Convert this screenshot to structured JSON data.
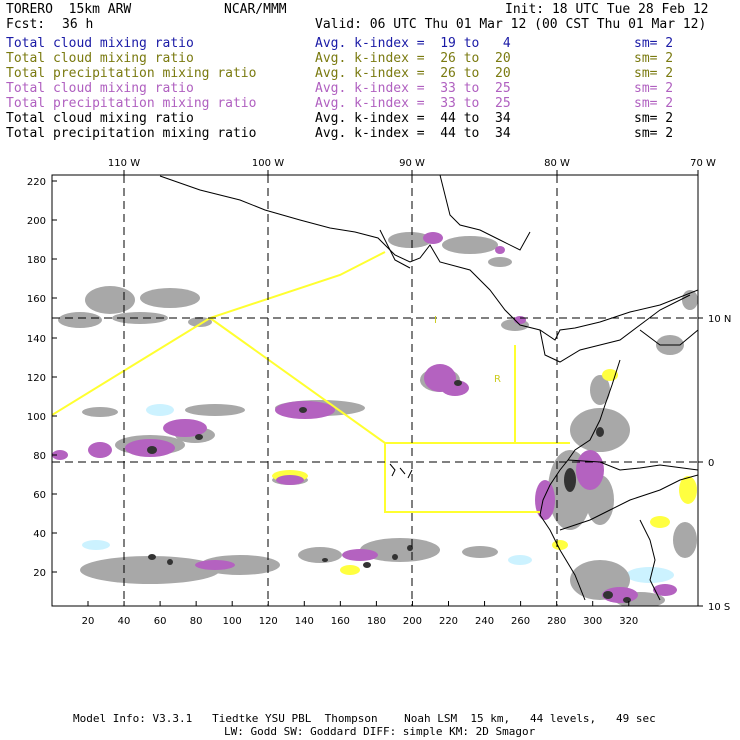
{
  "header": {
    "model": "TORERO  15km ARW",
    "org": "NCAR/MMM",
    "init": "Init: 18 UTC Tue 28 Feb 12",
    "fcst_label": "Fcst:",
    "fcst_value": "36 h",
    "valid": "Valid: 06 UTC Thu 01 Mar 12 (00 CST Thu 01 Mar 12)"
  },
  "legend": [
    {
      "field": "Total cloud mixing ratio",
      "index": "Avg. k-index =  19 to   4",
      "sm": "sm= 2",
      "color": "#1a1aa6"
    },
    {
      "field": "Total cloud mixing ratio",
      "index": "Avg. k-index =  26 to  20",
      "sm": "sm= 2",
      "color": "#7a7a10"
    },
    {
      "field": "Total precipitation mixing ratio",
      "index": "Avg. k-index =  26 to  20",
      "sm": "sm= 2",
      "color": "#7a7a10"
    },
    {
      "field": "Total cloud mixing ratio",
      "index": "Avg. k-index =  33 to  25",
      "sm": "sm= 2",
      "color": "#b060c0"
    },
    {
      "field": "Total precipitation mixing ratio",
      "index": "Avg. k-index =  33 to  25",
      "sm": "sm= 2",
      "color": "#b060c0"
    },
    {
      "field": "Total cloud mixing ratio",
      "index": "Avg. k-index =  44 to  34",
      "sm": "sm= 2",
      "color": "#000000"
    },
    {
      "field": "Total precipitation mixing ratio",
      "index": "Avg. k-index =  44 to  34",
      "sm": "sm= 2",
      "color": "#000000"
    }
  ],
  "map": {
    "top_lon_labels": [
      "110 W",
      "100 W",
      "90 W",
      "80 W",
      "70 W"
    ],
    "right_lat_labels": [
      "10 N",
      "0",
      "10 S"
    ],
    "y_ticks": [
      "220",
      "200",
      "180",
      "160",
      "140",
      "120",
      "100",
      "80",
      "60",
      "40",
      "20"
    ],
    "x_ticks": [
      "20",
      "40",
      "60",
      "80",
      "100",
      "120",
      "140",
      "160",
      "180",
      "200",
      "220",
      "240",
      "260",
      "280",
      "300",
      "320"
    ],
    "region_labels": [
      "I",
      "R"
    ],
    "colors": {
      "cloud_gray": "#a8a8a8",
      "dark_core": "#333333",
      "purple": "#b462c0",
      "yellow": "#ffff40",
      "light_cyan": "#ccf2ff",
      "track_yellow": "#ffff30"
    }
  },
  "footer": {
    "line1": "Model Info: V3.3.1   Tiedtke YSU PBL  Thompson    Noah LSM  15 km,   44 levels,   49 sec",
    "line2": "LW: Godd SW: Goddard DIFF: simple KM: 2D Smagor"
  }
}
